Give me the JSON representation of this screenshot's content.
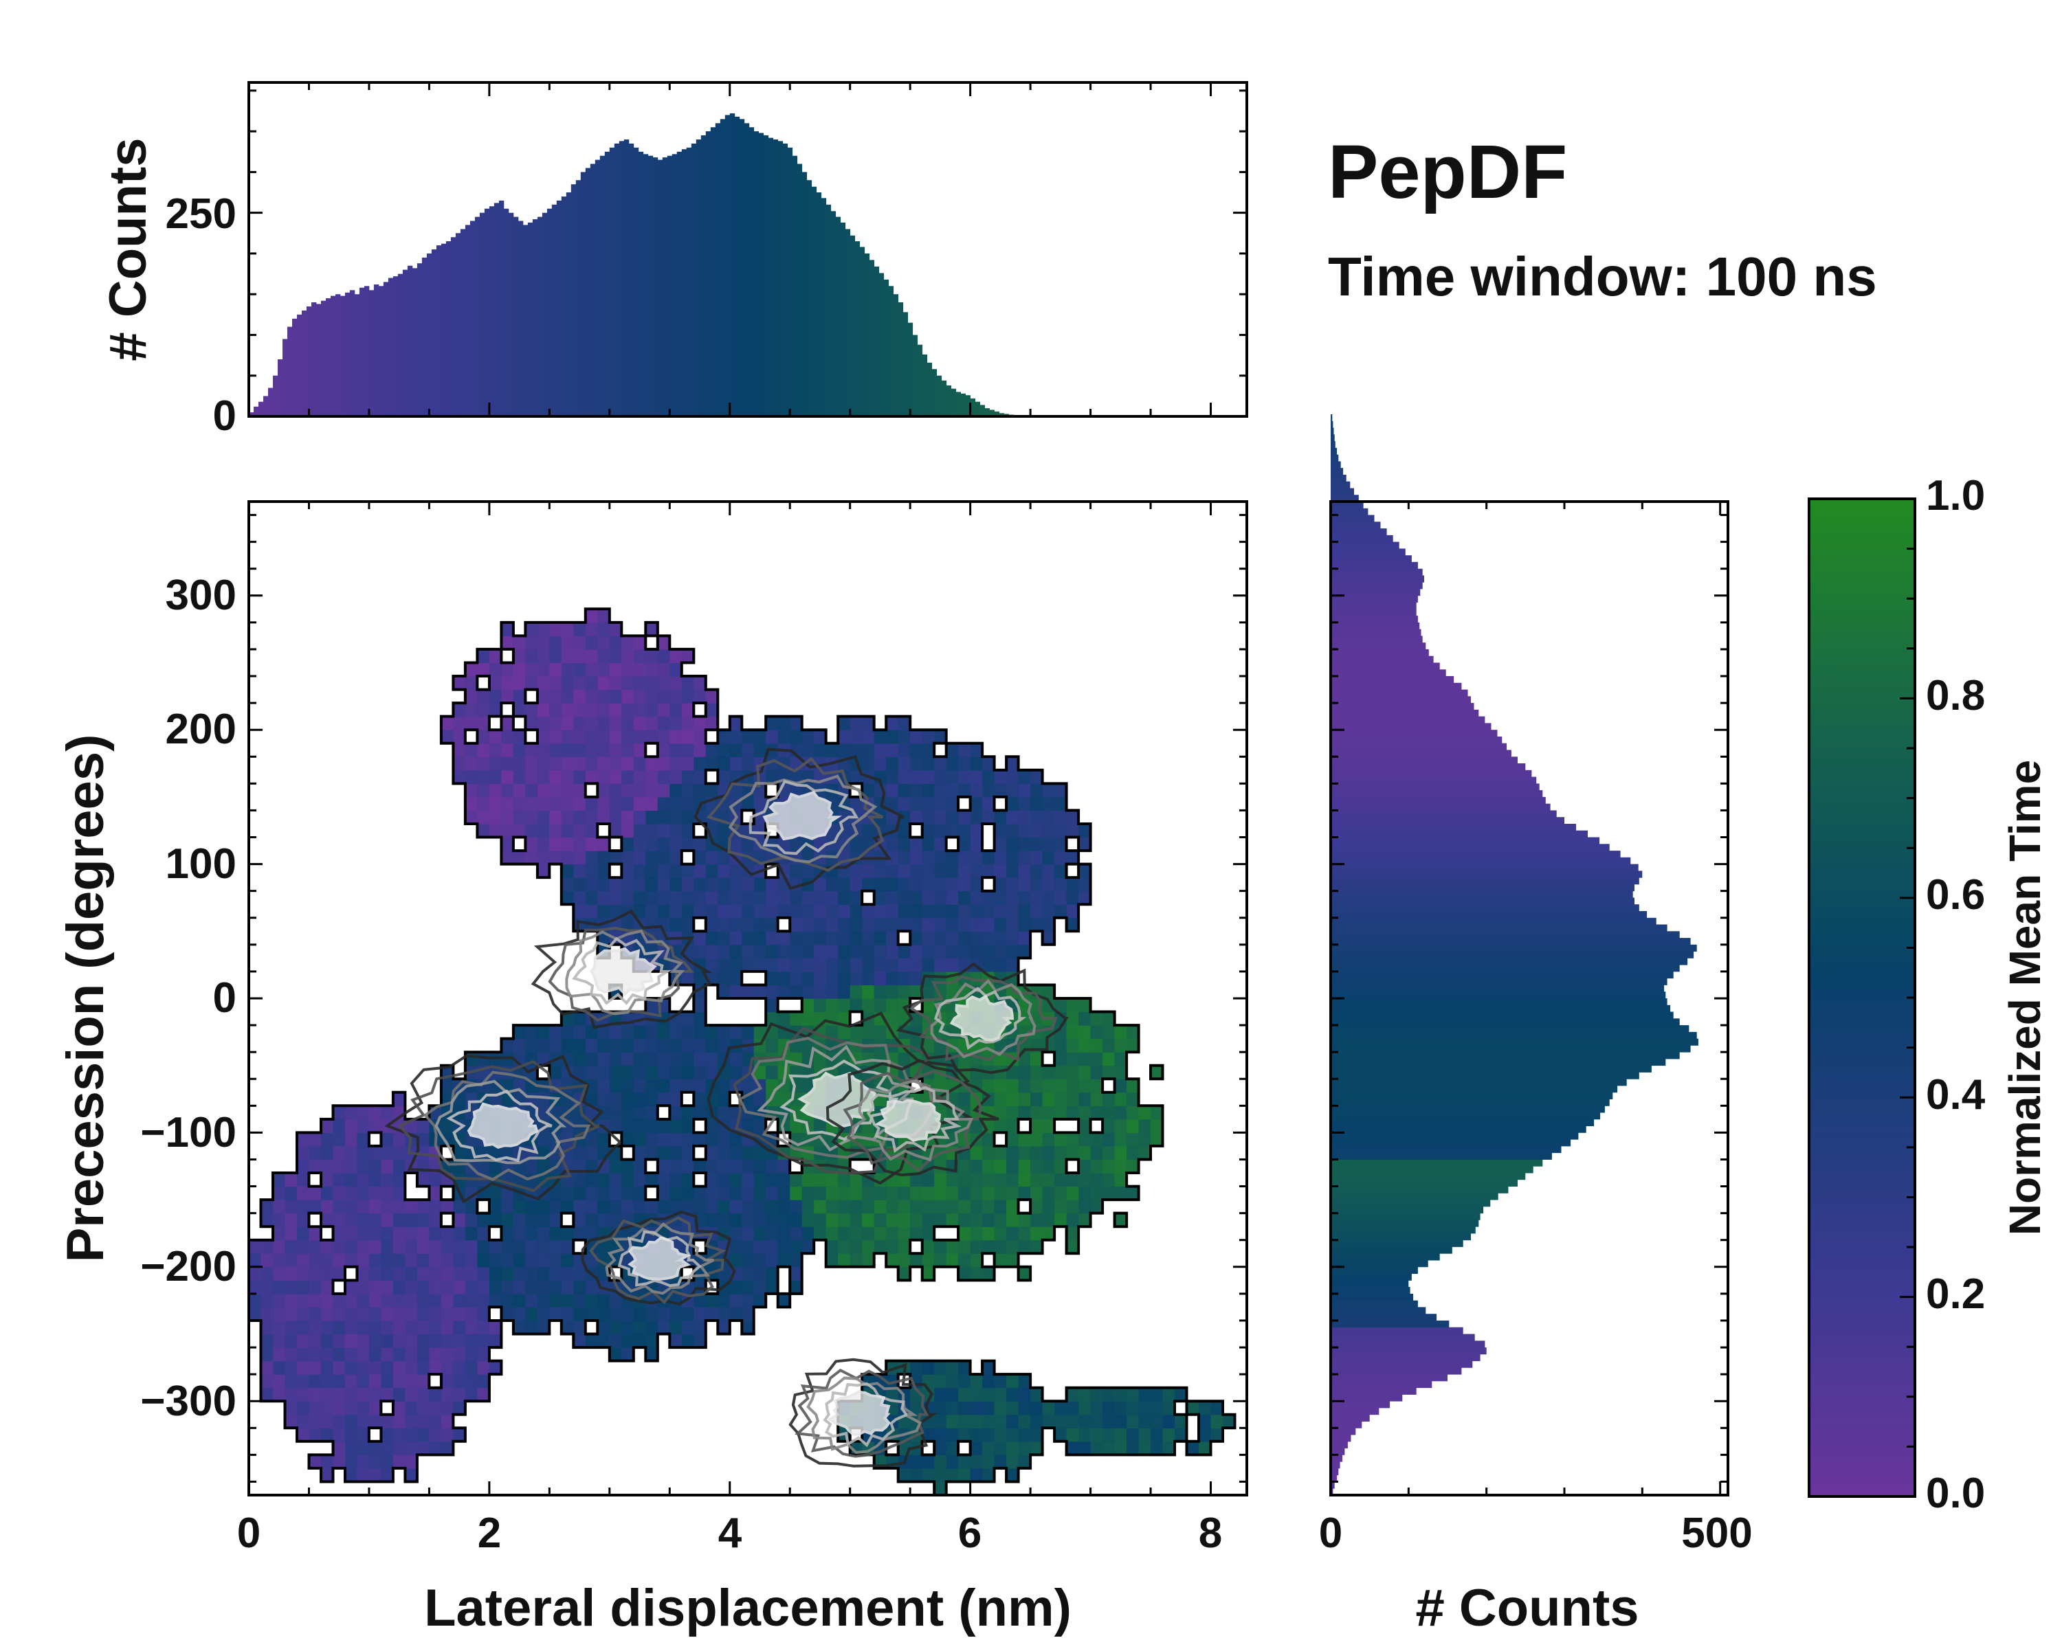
{
  "title": "PepDF",
  "subtitle": "Time window: 100 ns",
  "colors": {
    "cmap_low": "#6a359c",
    "cmap_mid": "#08416a",
    "cmap_high": "#228b22",
    "contour_dark": "#1a1a1a",
    "contour_light": "#e6e6e6",
    "outline": "#000000"
  },
  "chart_data": [
    {
      "id": "joint",
      "type": "heatmap",
      "xlabel": "Lateral displacement (nm)",
      "ylabel": "Precession (degrees)",
      "xlim": [
        0,
        8.3
      ],
      "ylim": [
        -370,
        370
      ],
      "xticks": [
        0,
        2,
        4,
        6,
        8
      ],
      "yticks": [
        -300,
        -200,
        -100,
        0,
        100,
        200,
        300
      ],
      "ytick_labels": [
        "−300",
        "−200",
        "−100",
        "0",
        "100",
        "200",
        "300"
      ],
      "bins": {
        "x": 0.1,
        "y": 10
      },
      "regions": [
        {
          "x": [
            0.1,
            2.0
          ],
          "y": [
            -350,
            -90
          ],
          "level": 0.18
        },
        {
          "x": [
            1.5,
            4.8
          ],
          "y": [
            -250,
            -10
          ],
          "level": 0.45
        },
        {
          "x": [
            4.0,
            7.4
          ],
          "y": [
            -200,
            20
          ],
          "level": 0.8
        },
        {
          "x": [
            2.7,
            6.8
          ],
          "y": [
            0,
            200
          ],
          "level": 0.38
        },
        {
          "x": [
            1.7,
            3.8
          ],
          "y": [
            100,
            280
          ],
          "level": 0.1
        },
        {
          "x": [
            5.0,
            6.6
          ],
          "y": [
            -360,
            -270
          ],
          "level": 0.6
        },
        {
          "x": [
            6.5,
            8.1
          ],
          "y": [
            -340,
            -290
          ],
          "level": 0.62
        }
      ],
      "hotspots": [
        {
          "x": 4.9,
          "y": -75,
          "weight": 1.0
        },
        {
          "x": 2.1,
          "y": -95,
          "weight": 0.85
        },
        {
          "x": 4.6,
          "y": 135,
          "weight": 0.75
        },
        {
          "x": 3.1,
          "y": 20,
          "weight": 0.6
        },
        {
          "x": 5.1,
          "y": -310,
          "weight": 0.55
        },
        {
          "x": 6.1,
          "y": -15,
          "weight": 0.55
        },
        {
          "x": 3.4,
          "y": -195,
          "weight": 0.5
        },
        {
          "x": 5.5,
          "y": -90,
          "weight": 0.6
        }
      ],
      "colorbar": {
        "label": "Normalized Mean Time",
        "range": [
          0,
          1
        ],
        "ticks": [
          0.0,
          0.2,
          0.4,
          0.6,
          0.8,
          1.0
        ]
      }
    },
    {
      "id": "marginal_x",
      "type": "bar",
      "ylabel": "# Counts",
      "yticks": [
        0,
        250
      ],
      "ylim": [
        0,
        410
      ],
      "x_start": 0.0,
      "bin_width": 0.04,
      "values": [
        5,
        12,
        18,
        25,
        35,
        50,
        70,
        95,
        110,
        120,
        125,
        130,
        135,
        140,
        138,
        142,
        145,
        148,
        150,
        148,
        152,
        155,
        150,
        158,
        160,
        155,
        162,
        160,
        165,
        170,
        172,
        175,
        180,
        185,
        182,
        188,
        195,
        200,
        205,
        210,
        212,
        215,
        220,
        225,
        230,
        235,
        240,
        245,
        250,
        255,
        258,
        262,
        265,
        255,
        250,
        245,
        240,
        235,
        238,
        242,
        245,
        250,
        255,
        260,
        265,
        270,
        275,
        285,
        290,
        300,
        305,
        310,
        315,
        320,
        325,
        330,
        335,
        338,
        340,
        335,
        330,
        325,
        322,
        320,
        318,
        315,
        318,
        320,
        322,
        325,
        328,
        330,
        335,
        340,
        345,
        350,
        355,
        360,
        365,
        370,
        372,
        368,
        365,
        360,
        355,
        350,
        348,
        345,
        342,
        340,
        338,
        335,
        330,
        320,
        310,
        300,
        290,
        282,
        275,
        268,
        260,
        252,
        245,
        238,
        230,
        222,
        215,
        208,
        200,
        192,
        184,
        176,
        168,
        160,
        150,
        140,
        128,
        115,
        100,
        88,
        76,
        66,
        58,
        50,
        44,
        38,
        34,
        30,
        28,
        26,
        22,
        18,
        14,
        10,
        8,
        6,
        4,
        3,
        2,
        1
      ]
    },
    {
      "id": "marginal_y",
      "type": "bar",
      "orientation": "horizontal",
      "xlabel": "# Counts",
      "xticks": [
        0,
        500
      ],
      "xlim": [
        0,
        510
      ],
      "y_start": -370,
      "bin_width": 5,
      "values": [
        3,
        5,
        8,
        10,
        12,
        15,
        18,
        22,
        26,
        32,
        40,
        50,
        62,
        76,
        92,
        110,
        130,
        150,
        168,
        182,
        192,
        200,
        198,
        185,
        170,
        152,
        136,
        122,
        112,
        106,
        102,
        100,
        104,
        112,
        125,
        140,
        156,
        170,
        180,
        186,
        190,
        192,
        196,
        205,
        215,
        228,
        240,
        250,
        260,
        272,
        284,
        296,
        308,
        318,
        328,
        338,
        346,
        352,
        358,
        362,
        368,
        380,
        396,
        412,
        430,
        448,
        462,
        472,
        470,
        460,
        448,
        440,
        436,
        432,
        430,
        428,
        432,
        440,
        448,
        458,
        466,
        470,
        462,
        448,
        432,
        418,
        406,
        396,
        390,
        388,
        390,
        396,
        400,
        395,
        385,
        372,
        358,
        345,
        330,
        315,
        300,
        290,
        282,
        276,
        272,
        268,
        264,
        258,
        250,
        240,
        232,
        226,
        220,
        214,
        206,
        198,
        190,
        184,
        180,
        176,
        168,
        158,
        148,
        140,
        132,
        126,
        122,
        118,
        116,
        114,
        112,
        110,
        110,
        112,
        115,
        118,
        120,
        118,
        112,
        104,
        96,
        88,
        80,
        72,
        64,
        56,
        48,
        42,
        36,
        30,
        25,
        20,
        16,
        13,
        10,
        8,
        6,
        5,
        4,
        3,
        2
      ]
    }
  ]
}
